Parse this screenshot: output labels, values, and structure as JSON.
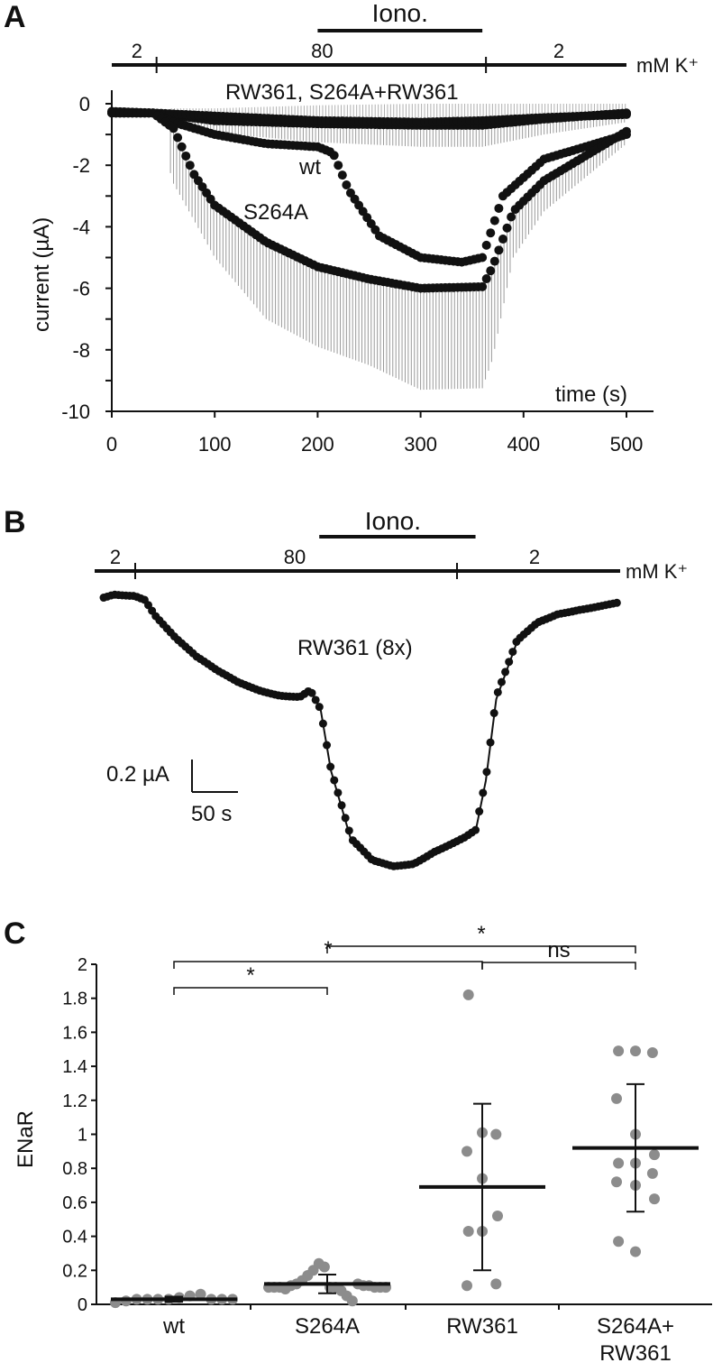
{
  "panel_labels": [
    "A",
    "B",
    "C"
  ],
  "chart_data": [
    {
      "type": "line",
      "panel": "A",
      "xlabel": "time (s)",
      "ylabel": "current (µA)",
      "xlim": [
        0,
        500
      ],
      "ylim": [
        -10,
        0
      ],
      "xticks": [
        0,
        100,
        200,
        300,
        400,
        500
      ],
      "yticks": [
        0,
        -2,
        -4,
        -6,
        -8,
        -10
      ],
      "error_bars": "negative SD, grey vertical lines",
      "condition_bar": {
        "iono_label": "Iono.",
        "iono_range": [
          200,
          360
        ],
        "k_unit": "mM K⁺",
        "k_segments": [
          {
            "label": "2",
            "from": 0,
            "to": 40
          },
          {
            "label": "80",
            "from": 40,
            "to": 360
          },
          {
            "label": "2",
            "from": 360,
            "to": 500
          }
        ]
      },
      "series": [
        {
          "name": "RW361, S264A+RW361",
          "x": [
            0,
            40,
            100,
            200,
            300,
            360,
            420,
            500
          ],
          "y": [
            -0.25,
            -0.3,
            -0.55,
            -0.65,
            -0.7,
            -0.7,
            -0.5,
            -0.3
          ],
          "err": [
            0.1,
            0.15,
            0.4,
            0.6,
            0.7,
            0.7,
            0.5,
            0.3
          ]
        },
        {
          "name": "RW361, S264A+RW361",
          "x": [
            0,
            40,
            100,
            200,
            300,
            360,
            420,
            500
          ],
          "y": [
            -0.3,
            -0.3,
            -0.4,
            -0.55,
            -0.6,
            -0.55,
            -0.45,
            -0.35
          ],
          "err": [
            0.0,
            0.0,
            0.0,
            0.0,
            0.0,
            0.0,
            0.0,
            0.0
          ]
        },
        {
          "name": "wt",
          "x": [
            0,
            40,
            60,
            100,
            150,
            200,
            215,
            230,
            260,
            300,
            340,
            360,
            380,
            420,
            500
          ],
          "y": [
            -0.3,
            -0.3,
            -0.6,
            -1.0,
            -1.3,
            -1.4,
            -1.6,
            -2.8,
            -4.3,
            -5.0,
            -5.15,
            -5.0,
            -3.0,
            -1.8,
            -1.0
          ],
          "err": [
            0.0,
            0.0,
            0.0,
            0.0,
            0.0,
            0.0,
            0.0,
            0.0,
            0.0,
            0.0,
            0.0,
            0.0,
            0.0,
            0.0,
            0.0
          ]
        },
        {
          "name": "S264A",
          "x": [
            0,
            40,
            60,
            80,
            100,
            150,
            200,
            250,
            300,
            360,
            370,
            390,
            420,
            500
          ],
          "y": [
            -0.3,
            -0.3,
            -0.8,
            -2.3,
            -3.3,
            -4.5,
            -5.3,
            -5.7,
            -6.0,
            -5.95,
            -5.3,
            -3.5,
            -2.5,
            -0.9
          ],
          "err": [
            0.0,
            0.0,
            1.8,
            1.5,
            1.7,
            2.5,
            2.6,
            2.8,
            3.3,
            3.3,
            3.0,
            1.5,
            1.0,
            0.4
          ]
        }
      ],
      "annotations": [
        "wt",
        "S264A",
        "RW361, S264A+RW361"
      ]
    },
    {
      "type": "line",
      "panel": "B",
      "series_label": "RW361 (8x)",
      "scale_bar": {
        "y_label": "0.2 µA",
        "x_label": "50 s",
        "y_value": 0.2,
        "x_value": 50
      },
      "condition_bar": {
        "iono_label": "Iono.",
        "iono_range": [
          200,
          360
        ],
        "k_unit": "mM K⁺",
        "k_segments": [
          {
            "label": "2",
            "from": 0,
            "to": 40
          },
          {
            "label": "80",
            "from": 40,
            "to": 360
          },
          {
            "label": "2",
            "from": 360,
            "to": 500
          }
        ]
      },
      "x": [
        0,
        10,
        20,
        30,
        40,
        50,
        70,
        90,
        110,
        130,
        150,
        170,
        190,
        200,
        210,
        220,
        240,
        260,
        280,
        300,
        320,
        340,
        350,
        360,
        370,
        380,
        400,
        420,
        440,
        460,
        480,
        500
      ],
      "y": [
        0,
        0.02,
        0.02,
        0.02,
        0.0,
        -0.08,
        -0.2,
        -0.3,
        -0.37,
        -0.42,
        -0.45,
        -0.47,
        -0.48,
        -0.45,
        -0.55,
        -0.85,
        -1.2,
        -1.3,
        -1.32,
        -1.3,
        -1.24,
        -1.2,
        -1.18,
        -1.15,
        -0.9,
        -0.5,
        -0.22,
        -0.12,
        -0.07,
        -0.05,
        -0.04,
        -0.03
      ]
    },
    {
      "type": "scatter",
      "panel": "C",
      "ylabel": "ENaR",
      "ylim": [
        0,
        2
      ],
      "yticks": [
        "0",
        "0.2",
        "0.4",
        "0.6",
        "0.8",
        "1",
        "1.2",
        "1.4",
        "1.6",
        "1.8",
        "2"
      ],
      "categories": [
        "wt",
        "S264A",
        "RW361",
        "S264A+ RW361"
      ],
      "groups": [
        {
          "name": "wt",
          "mean": 0.03,
          "sd": 0.015,
          "points": [
            0.01,
            0.02,
            0.03,
            0.03,
            0.03,
            0.03,
            0.04,
            0.05,
            0.06,
            0.03,
            0.03,
            0.03
          ]
        },
        {
          "name": "S264A",
          "mean": 0.12,
          "sd": 0.055,
          "points": [
            0.1,
            0.1,
            0.1,
            0.09,
            0.11,
            0.12,
            0.14,
            0.17,
            0.2,
            0.24,
            0.22,
            0.1,
            0.1,
            0.08,
            0.05,
            0.02,
            0.12,
            0.11,
            0.11,
            0.1,
            0.1,
            0.1
          ]
        },
        {
          "name": "RW361",
          "mean": 0.69,
          "sd": 0.49,
          "points": [
            1.82,
            1.01,
            1.0,
            0.9,
            0.74,
            0.52,
            0.43,
            0.43,
            0.12,
            0.11
          ]
        },
        {
          "name": "S264A+ RW361",
          "mean": 0.92,
          "sd": 0.375,
          "points": [
            1.49,
            1.49,
            1.48,
            1.21,
            1.0,
            0.88,
            0.83,
            0.83,
            0.77,
            0.72,
            0.7,
            0.62,
            0.37,
            0.31
          ]
        }
      ],
      "significance": [
        {
          "from": "wt",
          "to": "S264A",
          "label": "*"
        },
        {
          "from": "wt",
          "to": "RW361",
          "label": "*"
        },
        {
          "from": "S264A",
          "to": "S264A+ RW361",
          "label": "*"
        },
        {
          "from": "RW361",
          "to": "S264A+ RW361",
          "label": "ns"
        }
      ]
    }
  ]
}
